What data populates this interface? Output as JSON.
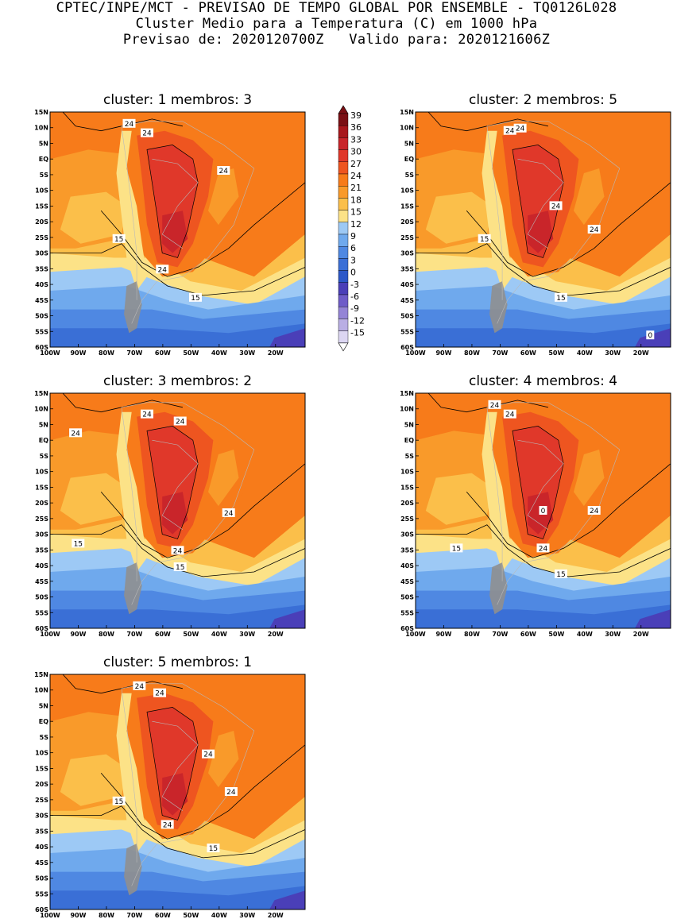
{
  "header": {
    "line1": "CPTEC/INPE/MCT - PREVISAO DE TEMPO GLOBAL POR ENSEMBLE - TQ0126L028",
    "line2": "Cluster Medio para a Temperatura (C) em 1000 hPa",
    "line3": "Previsao de: 2020120700Z   Valido para: 2020121606Z"
  },
  "lat_labels": [
    "15N",
    "10N",
    "5N",
    "EQ",
    "5S",
    "10S",
    "15S",
    "20S",
    "25S",
    "30S",
    "35S",
    "40S",
    "45S",
    "50S",
    "55S",
    "60S"
  ],
  "lon_labels": [
    "100W",
    "90W",
    "80W",
    "70W",
    "60W",
    "50W",
    "40W",
    "30W",
    "20W"
  ],
  "colorbar": {
    "labels": [
      "39",
      "36",
      "33",
      "30",
      "27",
      "24",
      "21",
      "18",
      "15",
      "12",
      "9",
      "6",
      "3",
      "0",
      "-3",
      "-6",
      "-9",
      "-12",
      "-15"
    ],
    "colors": [
      "#7a0f14",
      "#a8171c",
      "#c9252a",
      "#e0382a",
      "#ee5520",
      "#f77b1a",
      "#f99a2a",
      "#fbbf4a",
      "#fce287",
      "#9dc9f5",
      "#6fa9ed",
      "#4f88e2",
      "#3a6fd6",
      "#2c58c8",
      "#4a3fb8",
      "#6e5cc8",
      "#9484d6",
      "#b9aee4",
      "#dcd6f2"
    ]
  },
  "panels": [
    {
      "title": "cluster: 1   membros: 3",
      "contour_labels": [
        "24",
        "24",
        "24",
        "15",
        "24",
        "15"
      ]
    },
    {
      "title": "cluster: 2   membros: 5",
      "contour_labels": [
        "24",
        "24",
        "24",
        "24",
        "15",
        "15",
        "0"
      ]
    },
    {
      "title": "cluster: 3   membros: 2",
      "contour_labels": [
        "24",
        "24",
        "24",
        "24",
        "15",
        "24",
        "15"
      ]
    },
    {
      "title": "cluster: 4   membros: 4",
      "contour_labels": [
        "24",
        "24",
        "24",
        "15",
        "24",
        "15",
        "0"
      ]
    },
    {
      "title": "cluster: 5   membros: 1",
      "contour_labels": [
        "24",
        "24",
        "24",
        "24",
        "15",
        "24",
        "15"
      ]
    }
  ]
}
